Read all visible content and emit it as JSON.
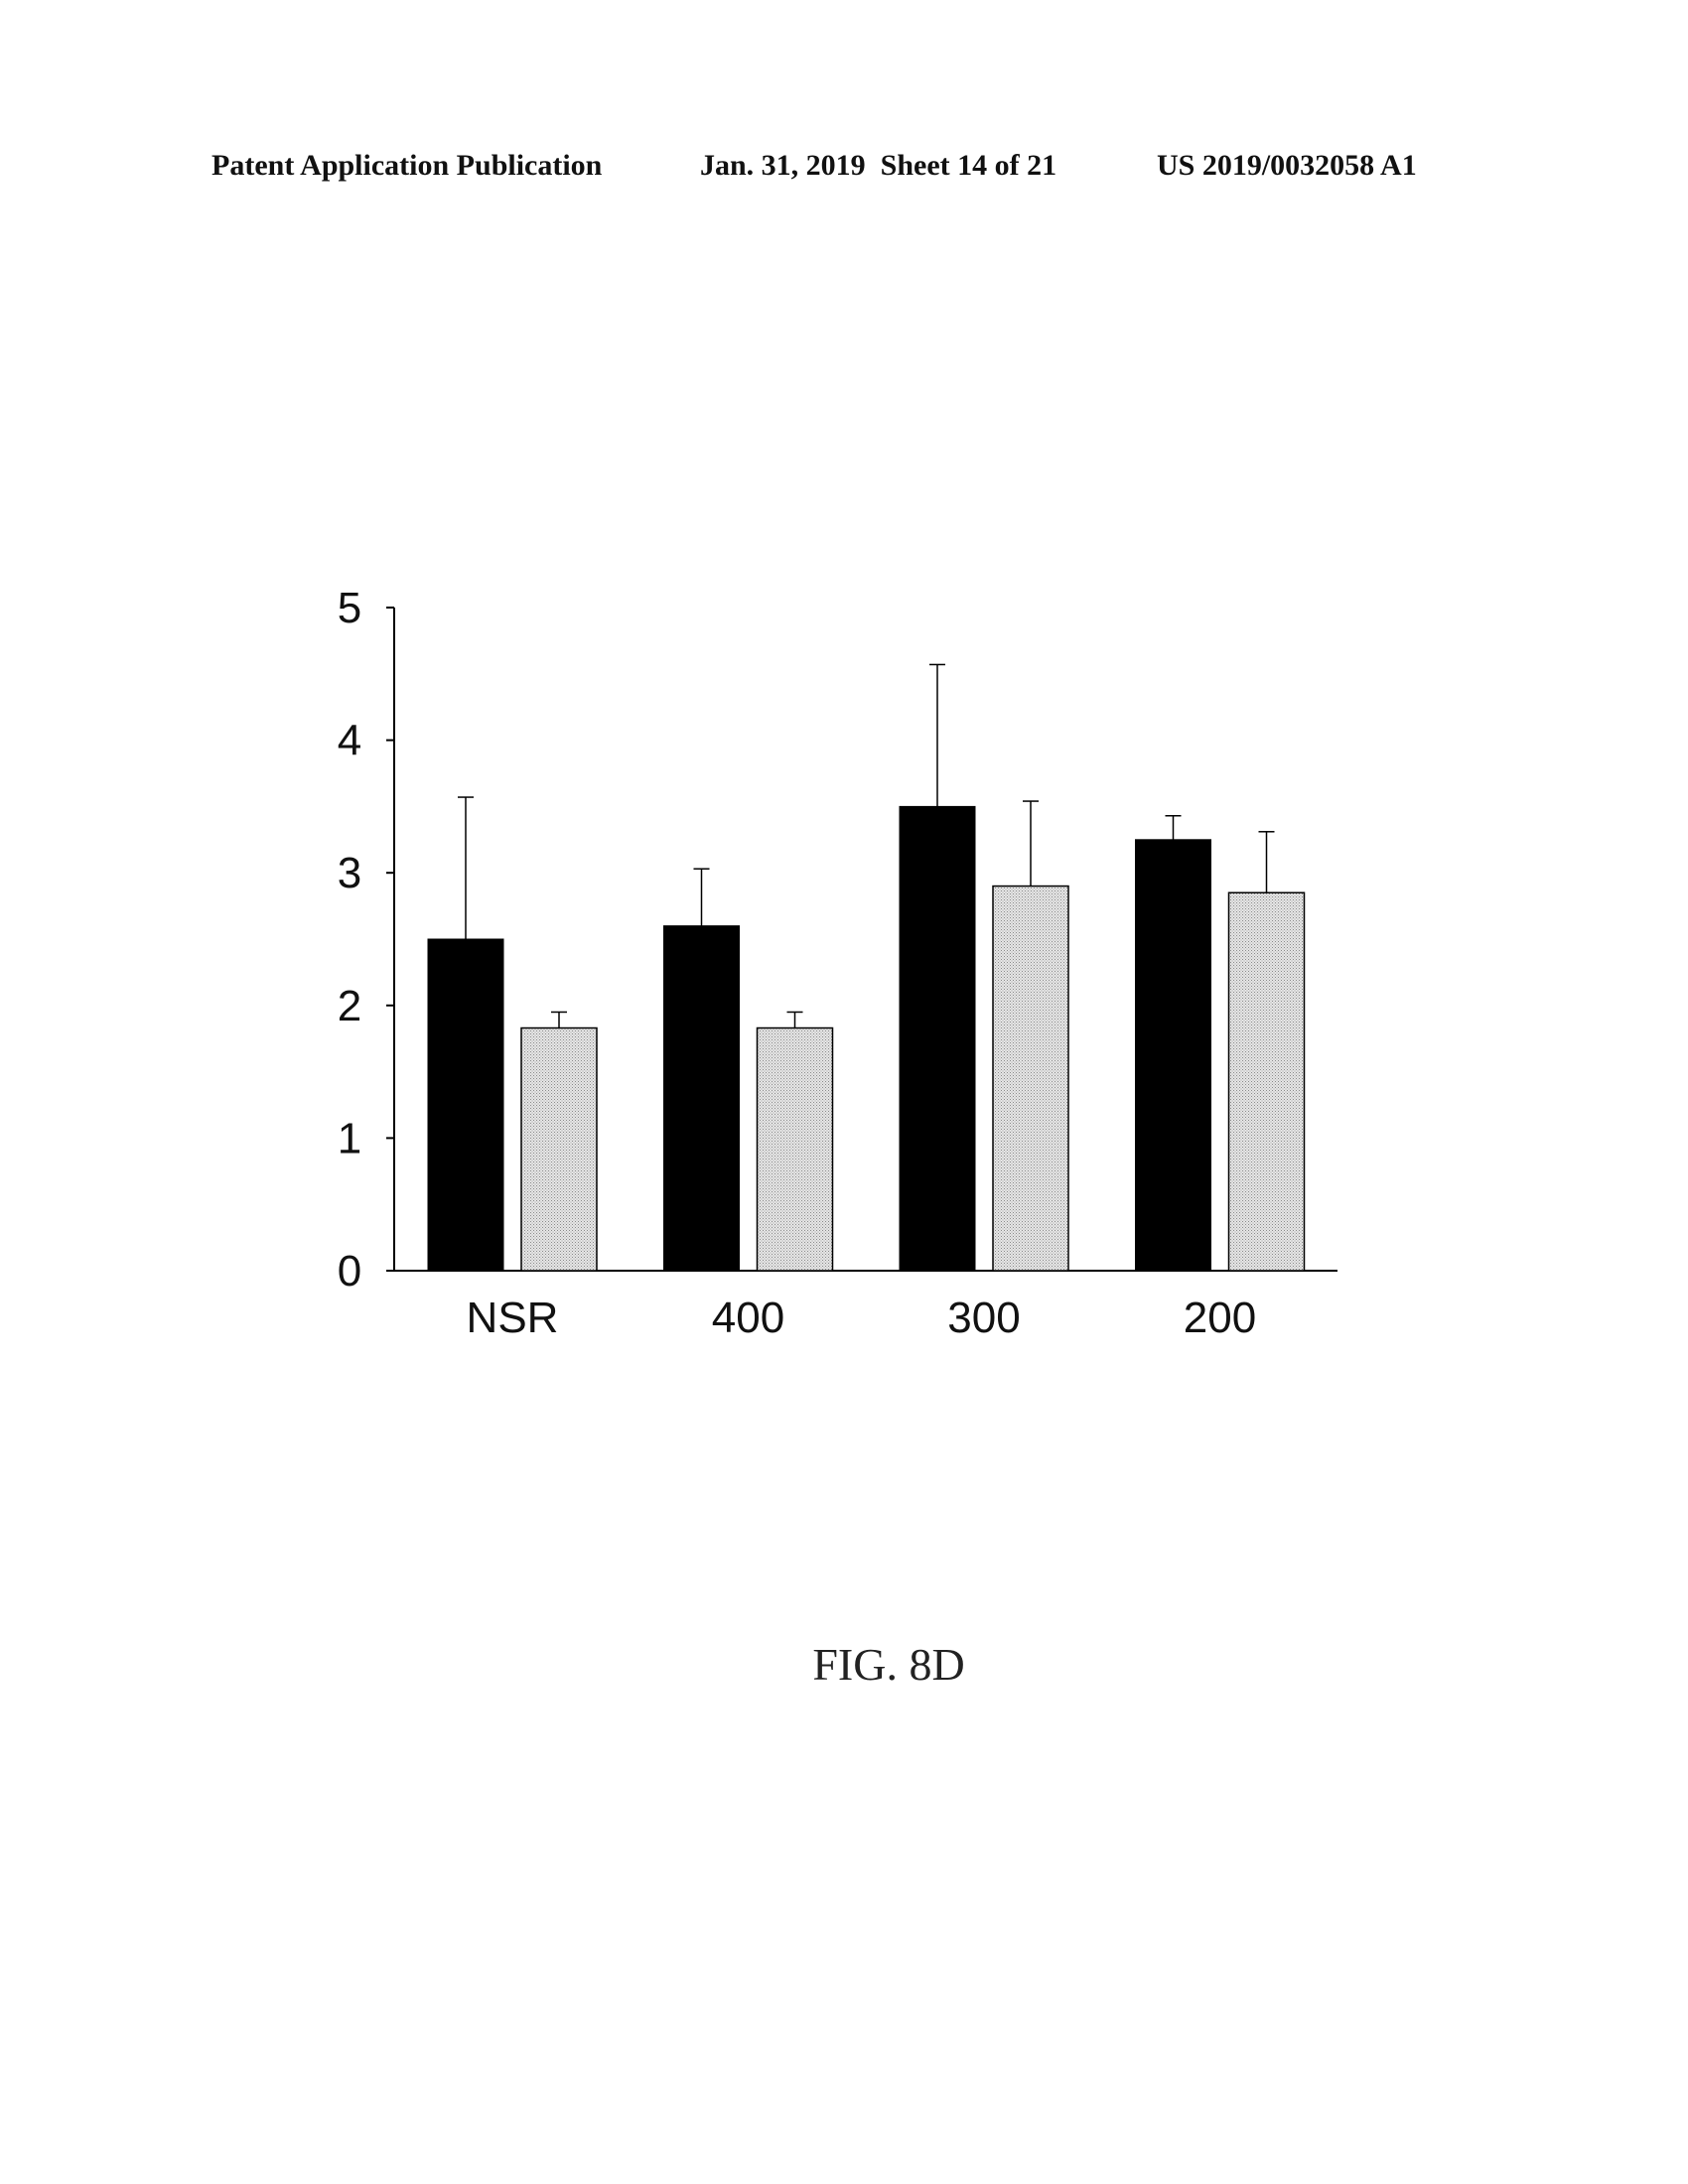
{
  "header": {
    "publication": "Patent Application Publication",
    "date_sheet": "Jan. 31, 2019  Sheet 14 of 21",
    "number": "US 2019/0032058 A1"
  },
  "figure_label": "FIG. 8D",
  "colors": {
    "series1": "#000000",
    "series2": "#d9d9d9",
    "axis": "#000000"
  },
  "chart_data": {
    "type": "bar",
    "title": "",
    "xlabel": "",
    "ylabel": "",
    "categories": [
      "NSR",
      "400",
      "300",
      "200"
    ],
    "ylim": [
      0,
      5
    ],
    "yticks": [
      0,
      1,
      2,
      3,
      4,
      5
    ],
    "grid": false,
    "series": [
      {
        "fill": "solid-black",
        "values": [
          2.5,
          2.6,
          3.5,
          3.25
        ],
        "error": [
          1.07,
          0.43,
          1.07,
          0.18
        ]
      },
      {
        "fill": "light-stipple",
        "values": [
          1.83,
          1.83,
          2.9,
          2.85
        ],
        "error": [
          0.12,
          0.12,
          0.64,
          0.46
        ]
      }
    ]
  }
}
